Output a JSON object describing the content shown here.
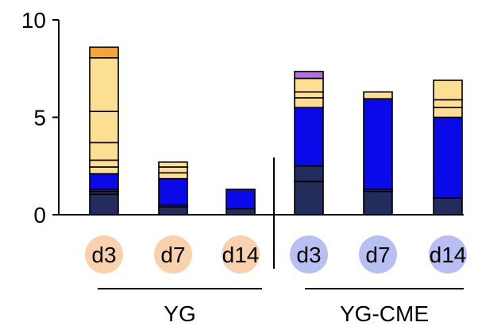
{
  "colors": {
    "dark_navy": "#232d5c",
    "blue": "#0a0ae8",
    "light_yellow": "#fddf93",
    "orange": "#f2a63a",
    "purple": "#b56ee0",
    "peach_circle": "#f9d2ad",
    "lavender_circle": "#b8bff2",
    "segment_line": "#000000"
  },
  "chart_data": {
    "type": "bar",
    "stacked": true,
    "ylim": [
      0,
      10
    ],
    "yticks": [
      0,
      5,
      10
    ],
    "ytick_labels": [
      "0",
      "5",
      "10"
    ],
    "grid": false,
    "groups": [
      {
        "name": "YG",
        "bars": [
          {
            "category": "d3",
            "segments": [
              {
                "color": "dark_navy",
                "value": 1.05
              },
              {
                "color": "dark_navy",
                "value": 0.15
              },
              {
                "color": "dark_navy",
                "value": 0.1
              },
              {
                "color": "blue",
                "value": 0.8
              },
              {
                "color": "light_yellow",
                "value": 0.35
              },
              {
                "color": "light_yellow",
                "value": 0.35
              },
              {
                "color": "light_yellow",
                "value": 0.9
              },
              {
                "color": "light_yellow",
                "value": 1.6
              },
              {
                "color": "light_yellow",
                "value": 2.75
              },
              {
                "color": "orange",
                "value": 0.55
              }
            ]
          },
          {
            "category": "d7",
            "segments": [
              {
                "color": "dark_navy",
                "value": 0.4
              },
              {
                "color": "dark_navy",
                "value": 0.1
              },
              {
                "color": "blue",
                "value": 1.35
              },
              {
                "color": "light_yellow",
                "value": 0.3
              },
              {
                "color": "light_yellow",
                "value": 0.3
              },
              {
                "color": "light_yellow",
                "value": 0.25
              }
            ]
          },
          {
            "category": "d14",
            "segments": [
              {
                "color": "dark_navy",
                "value": 0.3
              },
              {
                "color": "blue",
                "value": 1.0
              }
            ]
          }
        ]
      },
      {
        "name": "YG-CME",
        "bars": [
          {
            "category": "d3",
            "segments": [
              {
                "color": "dark_navy",
                "value": 1.7
              },
              {
                "color": "dark_navy",
                "value": 0.8
              },
              {
                "color": "blue",
                "value": 3.0
              },
              {
                "color": "light_yellow",
                "value": 0.5
              },
              {
                "color": "light_yellow",
                "value": 0.3
              },
              {
                "color": "light_yellow",
                "value": 0.7
              },
              {
                "color": "purple",
                "value": 0.35
              }
            ]
          },
          {
            "category": "d7",
            "segments": [
              {
                "color": "dark_navy",
                "value": 1.2
              },
              {
                "color": "dark_navy",
                "value": 0.1
              },
              {
                "color": "blue",
                "value": 4.65
              },
              {
                "color": "light_yellow",
                "value": 0.35
              }
            ]
          },
          {
            "category": "d14",
            "segments": [
              {
                "color": "dark_navy",
                "value": 0.85
              },
              {
                "color": "blue",
                "value": 4.15
              },
              {
                "color": "light_yellow",
                "value": 0.5
              },
              {
                "color": "light_yellow",
                "value": 0.4
              },
              {
                "color": "light_yellow",
                "value": 1.0
              }
            ]
          }
        ]
      }
    ]
  }
}
